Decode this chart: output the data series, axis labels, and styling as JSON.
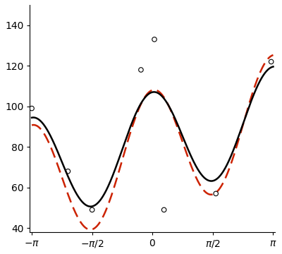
{
  "scatter_x_vals": [
    -3.14159,
    -2.2,
    -1.5708,
    -0.3,
    0.05,
    0.3,
    1.65,
    3.09
  ],
  "scatter_y_vals": [
    99,
    68,
    49,
    118,
    133,
    49,
    57,
    122
  ],
  "solid_color": "#000000",
  "dashed_color": "#cc2200",
  "ylim": [
    38,
    150
  ],
  "yticks": [
    40,
    60,
    80,
    100,
    120,
    140
  ],
  "background_color": "#ffffff",
  "linewidth_solid": 1.8,
  "linewidth_dashed": 1.8,
  "scatter_size": 22
}
